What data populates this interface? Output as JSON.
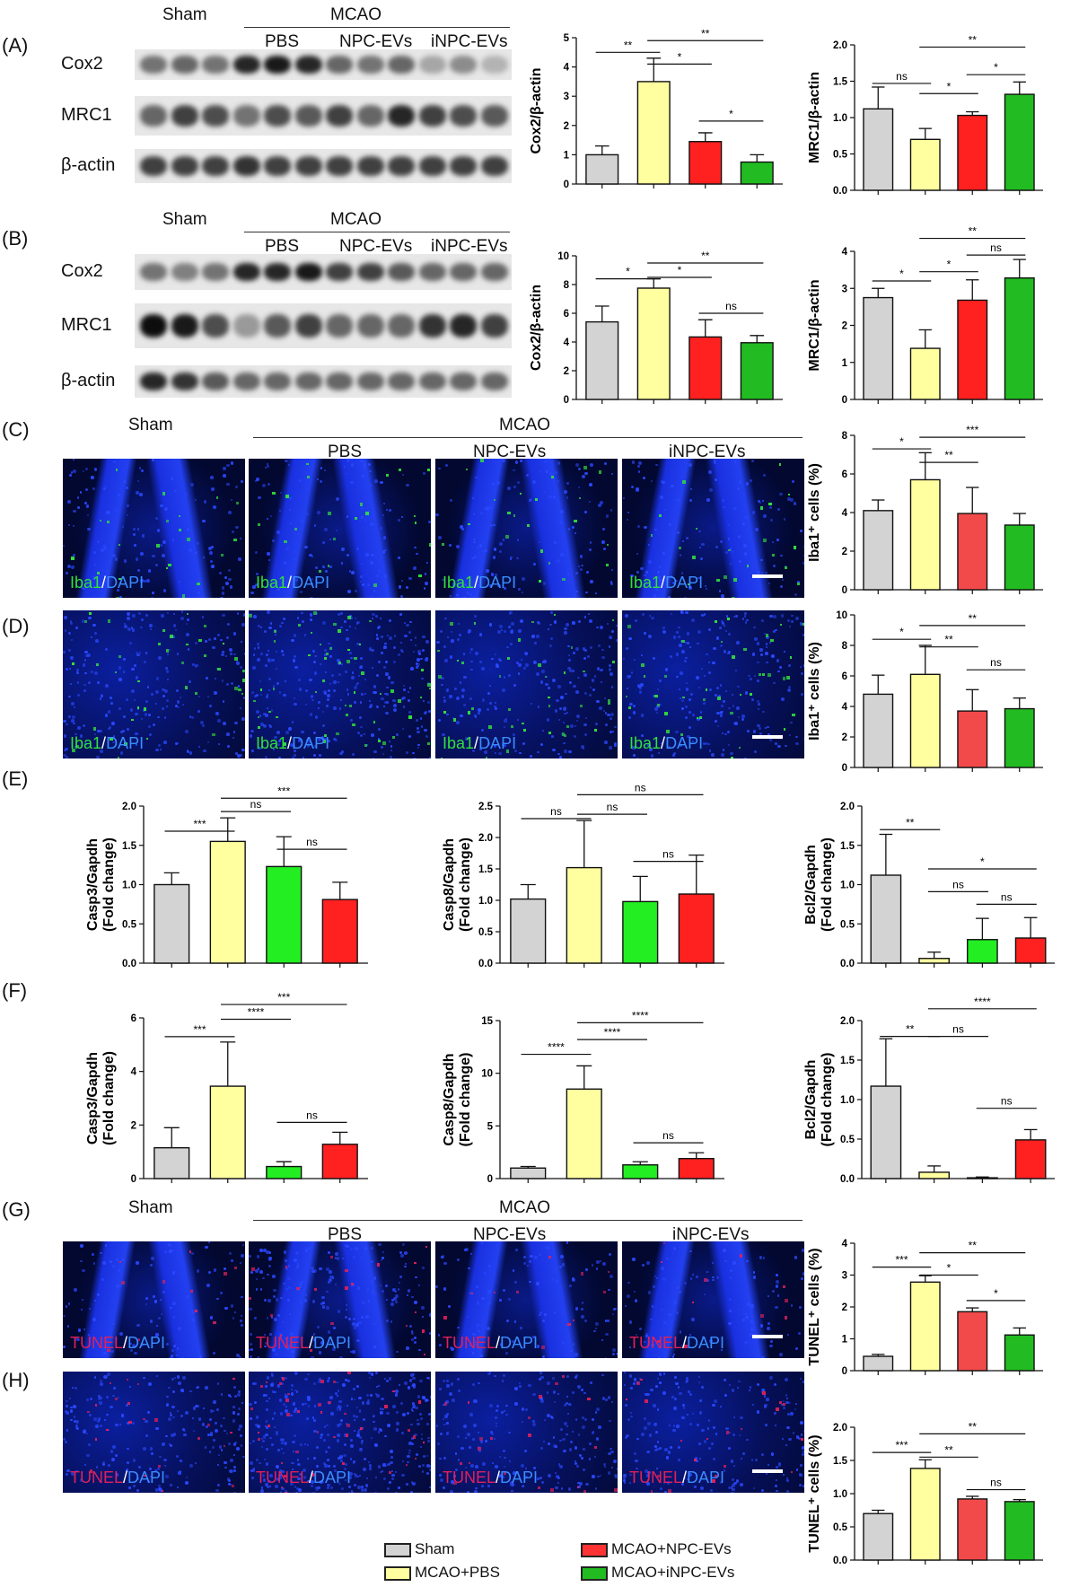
{
  "group_labels": {
    "sham": "Sham",
    "mcao": "MCAO",
    "pbs": "PBS",
    "npc": "NPC-EVs",
    "inpc": "iNPC-EVs"
  },
  "panels": {
    "A": "(A)",
    "B": "(B)",
    "C": "(C)",
    "D": "(D)",
    "E": "(E)",
    "F": "(F)",
    "G": "(G)",
    "H": "(H)"
  },
  "blot_labels": {
    "cox2": "Cox2",
    "mrc1": "MRC1",
    "actin": "β-actin"
  },
  "stains": {
    "iba1": "Iba1",
    "tunel": "TUNEL",
    "dapi": "DAPI",
    "sep": "/"
  },
  "legend": [
    {
      "label": "Sham",
      "color": "#d3d3d3"
    },
    {
      "label": "MCAO+PBS",
      "color": "#ffffa0"
    },
    {
      "label": "MCAO+NPC-EVs",
      "color": "#ff3333"
    },
    {
      "label": "MCAO+iNPC-EVs",
      "color": "#22bb22"
    }
  ],
  "colors": {
    "sham": "#d3d3d3",
    "pbs": "#ffffa0",
    "npc": "#ff2020",
    "inpc": "#22bb22",
    "npc_light": "#f24a4a",
    "nucleus": "#1930e0",
    "iba1": "#32e03c",
    "tunel": "#e0205a"
  },
  "chart_data": [
    {
      "id": "A-cox2",
      "type": "bar",
      "ylabel": "Cox2/β-actin",
      "ylim": [
        0,
        5
      ],
      "yticks": [
        "0",
        "1",
        "2",
        "3",
        "4",
        "5"
      ],
      "values": [
        1.0,
        3.5,
        1.45,
        0.75
      ],
      "errors": [
        0.3,
        0.8,
        0.3,
        0.25
      ],
      "colors": [
        "#d3d3d3",
        "#ffffa0",
        "#ff2020",
        "#22bb22"
      ],
      "sig": [
        {
          "a": 0,
          "b": 1,
          "y": 4.5,
          "t": "**"
        },
        {
          "a": 1,
          "b": 2,
          "y": 4.1,
          "t": "*"
        },
        {
          "a": 1,
          "b": 3,
          "y": 4.9,
          "t": "**"
        },
        {
          "a": 2,
          "b": 3,
          "y": 2.15,
          "t": "*"
        }
      ]
    },
    {
      "id": "A-mrc1",
      "type": "bar",
      "ylabel": "MRC1/β-actin",
      "ylim": [
        0,
        2.0
      ],
      "yticks": [
        "0.0",
        "0.5",
        "1.0",
        "1.5",
        "2.0"
      ],
      "values": [
        1.12,
        0.7,
        1.03,
        1.32
      ],
      "errors": [
        0.3,
        0.15,
        0.05,
        0.17
      ],
      "colors": [
        "#d3d3d3",
        "#ffffa0",
        "#ff2020",
        "#22bb22"
      ],
      "sig": [
        {
          "a": 0,
          "b": 1,
          "y": 1.47,
          "t": "ns"
        },
        {
          "a": 1,
          "b": 2,
          "y": 1.33,
          "t": "*"
        },
        {
          "a": 1,
          "b": 3,
          "y": 1.97,
          "t": "**"
        },
        {
          "a": 2,
          "b": 3,
          "y": 1.59,
          "t": "*"
        }
      ]
    },
    {
      "id": "B-cox2",
      "type": "bar",
      "ylabel": "Cox2/β-actin",
      "ylim": [
        0,
        10
      ],
      "yticks": [
        "0",
        "2",
        "4",
        "6",
        "8",
        "10"
      ],
      "values": [
        5.4,
        7.75,
        4.35,
        3.95
      ],
      "errors": [
        1.1,
        0.65,
        1.2,
        0.5
      ],
      "colors": [
        "#d3d3d3",
        "#ffffa0",
        "#ff2020",
        "#22bb22"
      ],
      "sig": [
        {
          "a": 0,
          "b": 1,
          "y": 8.4,
          "t": "*"
        },
        {
          "a": 1,
          "b": 2,
          "y": 8.5,
          "t": "*"
        },
        {
          "a": 1,
          "b": 3,
          "y": 9.5,
          "t": "**"
        },
        {
          "a": 2,
          "b": 3,
          "y": 6.0,
          "t": "ns"
        }
      ]
    },
    {
      "id": "B-mrc1",
      "type": "bar",
      "ylabel": "MRC1/β-actin",
      "ylim": [
        0,
        4
      ],
      "yticks": [
        "0",
        "1",
        "2",
        "3",
        "4"
      ],
      "values": [
        2.75,
        1.38,
        2.68,
        3.28
      ],
      "errors": [
        0.25,
        0.5,
        0.55,
        0.5
      ],
      "colors": [
        "#d3d3d3",
        "#ffffa0",
        "#ff2020",
        "#22bb22"
      ],
      "sig": [
        {
          "a": 0,
          "b": 1,
          "y": 3.2,
          "t": "*"
        },
        {
          "a": 1,
          "b": 2,
          "y": 3.45,
          "t": "*"
        },
        {
          "a": 1,
          "b": 3,
          "y": 4.35,
          "t": "**"
        },
        {
          "a": 2,
          "b": 3,
          "y": 3.9,
          "t": "ns"
        }
      ]
    },
    {
      "id": "C",
      "type": "bar",
      "ylabel": "Iba1⁺ cells (%)",
      "ylim": [
        0,
        8
      ],
      "yticks": [
        "0",
        "2",
        "4",
        "6",
        "8"
      ],
      "values": [
        4.1,
        5.7,
        3.95,
        3.35
      ],
      "errors": [
        0.55,
        1.4,
        1.35,
        0.6
      ],
      "colors": [
        "#d3d3d3",
        "#ffffa0",
        "#f24a4a",
        "#22bb22"
      ],
      "sig": [
        {
          "a": 0,
          "b": 1,
          "y": 7.3,
          "t": "*"
        },
        {
          "a": 1,
          "b": 2,
          "y": 6.6,
          "t": "**"
        },
        {
          "a": 1,
          "b": 3,
          "y": 7.9,
          "t": "***"
        }
      ]
    },
    {
      "id": "D",
      "type": "bar",
      "ylabel": "Iba1⁺ cells (%)",
      "ylim": [
        0,
        10
      ],
      "yticks": [
        "0",
        "2",
        "4",
        "6",
        "8",
        "10"
      ],
      "values": [
        4.8,
        6.1,
        3.7,
        3.85
      ],
      "errors": [
        1.25,
        1.9,
        1.4,
        0.7
      ],
      "colors": [
        "#d3d3d3",
        "#ffffa0",
        "#f24a4a",
        "#22bb22"
      ],
      "sig": [
        {
          "a": 0,
          "b": 1,
          "y": 8.4,
          "t": "*"
        },
        {
          "a": 1,
          "b": 2,
          "y": 7.9,
          "t": "**"
        },
        {
          "a": 1,
          "b": 3,
          "y": 9.3,
          "t": "**"
        },
        {
          "a": 2,
          "b": 3,
          "y": 6.4,
          "t": "ns"
        }
      ]
    },
    {
      "id": "E-casp3",
      "type": "bar",
      "ylabel": "Casp3/Gapdh",
      "ylabel2": "(Fold change)",
      "ylim": [
        0,
        2.0
      ],
      "yticks": [
        "0.0",
        "0.5",
        "1.0",
        "1.5",
        "2.0"
      ],
      "values": [
        1.0,
        1.55,
        1.23,
        0.81
      ],
      "errors": [
        0.15,
        0.3,
        0.38,
        0.22
      ],
      "colors": [
        "#d3d3d3",
        "#ffffa0",
        "#22ee22",
        "#ff2020"
      ],
      "sig": [
        {
          "a": 0,
          "b": 1,
          "y": 1.68,
          "t": "***"
        },
        {
          "a": 1,
          "b": 2,
          "y": 1.93,
          "t": "ns"
        },
        {
          "a": 1,
          "b": 3,
          "y": 2.1,
          "t": "***"
        },
        {
          "a": 2,
          "b": 3,
          "y": 1.45,
          "t": "ns"
        }
      ]
    },
    {
      "id": "E-casp8",
      "type": "bar",
      "ylabel": "Casp8/Gapdh",
      "ylabel2": "(Fold change)",
      "ylim": [
        0,
        2.5
      ],
      "yticks": [
        "0.0",
        "0.5",
        "1.0",
        "1.5",
        "2.0",
        "2.5"
      ],
      "values": [
        1.02,
        1.52,
        0.98,
        1.1
      ],
      "errors": [
        0.23,
        0.75,
        0.4,
        0.62
      ],
      "colors": [
        "#d3d3d3",
        "#ffffa0",
        "#22ee22",
        "#ff2020"
      ],
      "sig": [
        {
          "a": 0,
          "b": 1,
          "y": 2.3,
          "t": "ns"
        },
        {
          "a": 1,
          "b": 2,
          "y": 2.37,
          "t": "ns"
        },
        {
          "a": 1,
          "b": 3,
          "y": 2.68,
          "t": "ns"
        },
        {
          "a": 2,
          "b": 3,
          "y": 1.62,
          "t": "ns"
        }
      ]
    },
    {
      "id": "E-bcl2",
      "type": "bar",
      "ylabel": "Bcl2/Gapdh",
      "ylabel2": "(Fold change)",
      "ylim": [
        0,
        2.0
      ],
      "yticks": [
        "0.0",
        "0.5",
        "1.0",
        "1.5",
        "2.0"
      ],
      "values": [
        1.12,
        0.06,
        0.3,
        0.32
      ],
      "errors": [
        0.52,
        0.08,
        0.27,
        0.26
      ],
      "colors": [
        "#d3d3d3",
        "#ffffa0",
        "#22ee22",
        "#ff2020"
      ],
      "sig": [
        {
          "a": 0,
          "b": 1,
          "y": 1.7,
          "t": "**"
        },
        {
          "a": 1,
          "b": 2,
          "y": 0.91,
          "t": "ns"
        },
        {
          "a": 1,
          "b": 3,
          "y": 1.2,
          "t": "*"
        },
        {
          "a": 2,
          "b": 3,
          "y": 0.75,
          "t": "ns"
        }
      ]
    },
    {
      "id": "F-casp3",
      "type": "bar",
      "ylabel": "Casp3/Gapdh",
      "ylabel2": "(Fold change)",
      "ylim": [
        0,
        6
      ],
      "yticks": [
        "0",
        "2",
        "4",
        "6"
      ],
      "values": [
        1.15,
        3.45,
        0.45,
        1.28
      ],
      "errors": [
        0.75,
        1.65,
        0.18,
        0.45
      ],
      "colors": [
        "#d3d3d3",
        "#ffffa0",
        "#22ee22",
        "#ff2020"
      ],
      "sig": [
        {
          "a": 0,
          "b": 1,
          "y": 5.3,
          "t": "***"
        },
        {
          "a": 1,
          "b": 2,
          "y": 5.95,
          "t": "****"
        },
        {
          "a": 1,
          "b": 3,
          "y": 6.5,
          "t": "***"
        },
        {
          "a": 2,
          "b": 3,
          "y": 2.1,
          "t": "ns"
        }
      ]
    },
    {
      "id": "F-casp8",
      "type": "bar",
      "ylabel": "Casp8/Gapdh",
      "ylabel2": "(Fold change)",
      "ylim": [
        0,
        15
      ],
      "yticks": [
        "0",
        "5",
        "10",
        "15"
      ],
      "values": [
        1.0,
        8.5,
        1.3,
        1.9
      ],
      "errors": [
        0.15,
        2.2,
        0.3,
        0.55
      ],
      "colors": [
        "#d3d3d3",
        "#ffffa0",
        "#22ee22",
        "#ff2020"
      ],
      "sig": [
        {
          "a": 0,
          "b": 1,
          "y": 11.8,
          "t": "****"
        },
        {
          "a": 1,
          "b": 2,
          "y": 13.2,
          "t": "****"
        },
        {
          "a": 1,
          "b": 3,
          "y": 14.8,
          "t": "****"
        },
        {
          "a": 2,
          "b": 3,
          "y": 3.4,
          "t": "ns"
        }
      ]
    },
    {
      "id": "F-bcl2",
      "type": "bar",
      "ylabel": "Bcl2/Gapdh",
      "ylabel2": "(Fold change)",
      "ylim": [
        0,
        2.0
      ],
      "yticks": [
        "0.0",
        "0.5",
        "1.0",
        "1.5",
        "2.0"
      ],
      "values": [
        1.17,
        0.08,
        0.01,
        0.49
      ],
      "errors": [
        0.6,
        0.08,
        0.01,
        0.13
      ],
      "colors": [
        "#d3d3d3",
        "#ffffa0",
        "#22ee22",
        "#ff2020"
      ],
      "sig": [
        {
          "a": 0,
          "b": 1,
          "y": 1.8,
          "t": "**"
        },
        {
          "a": 1,
          "b": 2,
          "y": 1.8,
          "t": "ns"
        },
        {
          "a": 1,
          "b": 3,
          "y": 2.15,
          "t": "****"
        },
        {
          "a": 2,
          "b": 3,
          "y": 0.89,
          "t": "ns"
        }
      ]
    },
    {
      "id": "G",
      "type": "bar",
      "ylabel": "TUNEL⁺ cells (%)",
      "ylim": [
        0,
        4
      ],
      "yticks": [
        "0",
        "1",
        "2",
        "3",
        "4"
      ],
      "values": [
        0.45,
        2.78,
        1.85,
        1.12
      ],
      "errors": [
        0.06,
        0.2,
        0.12,
        0.22
      ],
      "colors": [
        "#d3d3d3",
        "#ffffa0",
        "#f24a4a",
        "#22bb22"
      ],
      "sig": [
        {
          "a": 0,
          "b": 1,
          "y": 3.25,
          "t": "***"
        },
        {
          "a": 1,
          "b": 2,
          "y": 3.0,
          "t": "*"
        },
        {
          "a": 1,
          "b": 3,
          "y": 3.7,
          "t": "**"
        },
        {
          "a": 2,
          "b": 3,
          "y": 2.2,
          "t": "*"
        }
      ]
    },
    {
      "id": "H",
      "type": "bar",
      "ylabel": "TUNEL⁺ cells (%)",
      "ylim": [
        0,
        2.0
      ],
      "yticks": [
        "0.0",
        "0.5",
        "1.0",
        "1.5",
        "2.0"
      ],
      "values": [
        0.7,
        1.38,
        0.92,
        0.88
      ],
      "errors": [
        0.05,
        0.13,
        0.04,
        0.03
      ],
      "colors": [
        "#d3d3d3",
        "#ffffa0",
        "#f24a4a",
        "#22bb22"
      ],
      "sig": [
        {
          "a": 0,
          "b": 1,
          "y": 1.62,
          "t": "***"
        },
        {
          "a": 1,
          "b": 2,
          "y": 1.55,
          "t": "**"
        },
        {
          "a": 1,
          "b": 3,
          "y": 1.9,
          "t": "**"
        },
        {
          "a": 2,
          "b": 3,
          "y": 1.06,
          "t": "ns"
        }
      ]
    }
  ]
}
